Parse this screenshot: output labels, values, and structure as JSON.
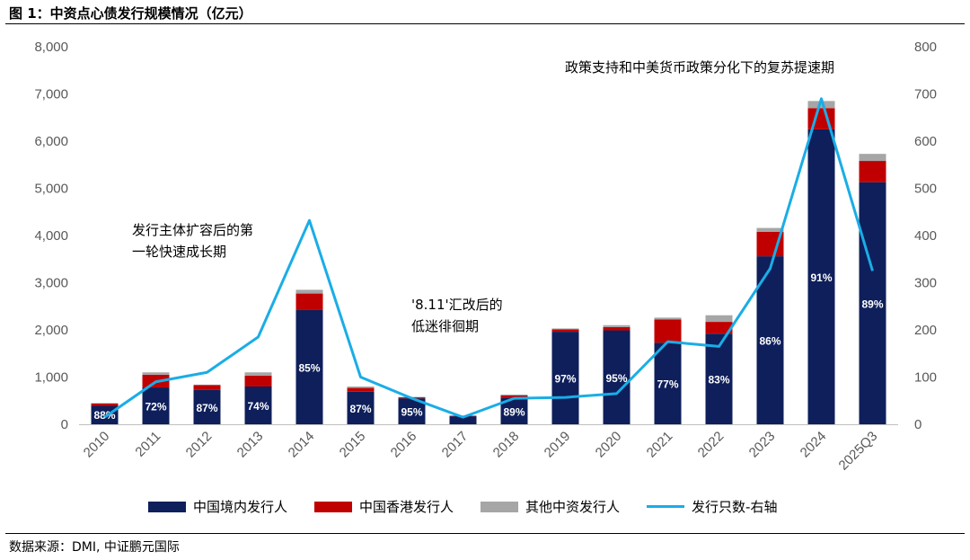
{
  "title": "图 1：中资点心债发行规模情况（亿元）",
  "source": "数据来源：DMI, 中证鹏元国际",
  "colors": {
    "mainland": "#0e1f5b",
    "hongkong": "#c00000",
    "other": "#a6a6a6",
    "count": "#1aade6"
  },
  "annotations": {
    "first": [
      "发行主体扩容后的第",
      "一轮快速成长期"
    ],
    "second": [
      "'8.11'汇改后的",
      "低迷徘徊期"
    ],
    "third": [
      "政策支持和中美货币政策分化下的复苏提速期"
    ]
  },
  "chart_data": {
    "type": "bar",
    "stacked": true,
    "categories": [
      "2010",
      "2011",
      "2012",
      "2013",
      "2014",
      "2015",
      "2016",
      "2017",
      "2018",
      "2019",
      "2020",
      "2021",
      "2022",
      "2023",
      "2024",
      "2025Q3"
    ],
    "series": [
      {
        "name": "中国境内发行人",
        "values": [
          390,
          780,
          730,
          800,
          2420,
          690,
          550,
          170,
          560,
          1960,
          1990,
          1730,
          1920,
          3560,
          6250,
          5130
        ]
      },
      {
        "name": "中国香港发行人",
        "values": [
          50,
          270,
          100,
          230,
          350,
          80,
          20,
          10,
          50,
          50,
          70,
          490,
          250,
          520,
          450,
          450
        ]
      },
      {
        "name": "其他中资发行人",
        "values": [
          10,
          50,
          10,
          70,
          80,
          30,
          10,
          5,
          20,
          20,
          40,
          40,
          140,
          80,
          150,
          150
        ]
      }
    ],
    "line_series": {
      "name": "发行只数-右轴",
      "axis": "right",
      "values": [
        15,
        90,
        110,
        185,
        432,
        100,
        55,
        15,
        55,
        57,
        65,
        175,
        165,
        330,
        690,
        325
      ]
    },
    "share_labels": [
      "88%",
      "72%",
      "87%",
      "74%",
      "85%",
      "87%",
      "95%",
      "",
      "89%",
      "97%",
      "95%",
      "77%",
      "83%",
      "86%",
      "91%",
      "89%"
    ],
    "y_left": {
      "min": 0,
      "max": 8000,
      "ticks": [
        "0",
        "1,000",
        "2,000",
        "3,000",
        "4,000",
        "5,000",
        "6,000",
        "7,000",
        "8,000"
      ]
    },
    "y_right": {
      "min": 0,
      "max": 800,
      "ticks": [
        "0",
        "100",
        "200",
        "300",
        "400",
        "500",
        "600",
        "700",
        "800"
      ]
    },
    "legend": [
      "中国境内发行人",
      "中国香港发行人",
      "其他中资发行人",
      "发行只数-右轴"
    ],
    "legend_position": "bottom",
    "grid": false
  }
}
